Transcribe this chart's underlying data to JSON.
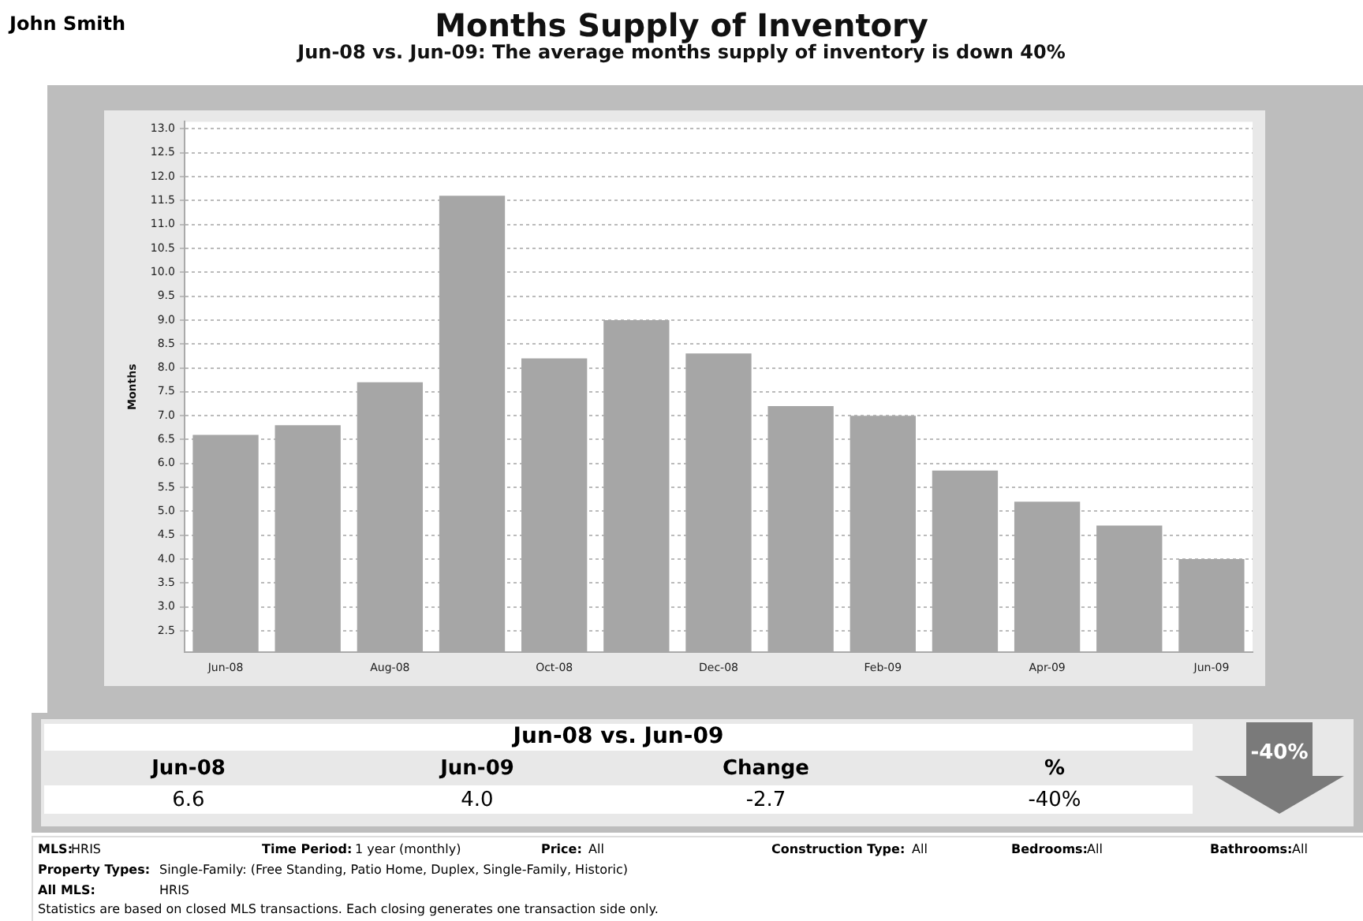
{
  "chart_data": {
    "type": "bar",
    "title": "Months Supply of Inventory",
    "subtitle": "Jun-08 vs. Jun-09:  The average months supply of inventory is down 40%",
    "ylabel": "Months",
    "categories": [
      "Jun-08",
      null,
      "Aug-08",
      null,
      "Oct-08",
      null,
      "Dec-08",
      null,
      "Feb-09",
      null,
      "Apr-09",
      null,
      "Jun-09"
    ],
    "values": [
      6.6,
      6.8,
      7.7,
      11.6,
      8.2,
      9.0,
      8.3,
      7.2,
      7.0,
      5.85,
      5.2,
      4.7,
      4.0
    ],
    "color": "#a6a6a6",
    "ylim": [
      2.05,
      13.15
    ],
    "yticks": [
      2.5,
      {
        "value": 3,
        "label": "3.0"
      },
      3.5,
      {
        "value": 4,
        "label": "4.0"
      },
      4.5,
      {
        "value": 5,
        "label": "5.0"
      },
      5.5,
      {
        "value": 6,
        "label": "6.0"
      },
      6.5,
      {
        "value": 7,
        "label": "7.0"
      },
      7.5,
      {
        "value": 8,
        "label": "8.0"
      },
      8.5,
      {
        "value": 9,
        "label": "9.0"
      },
      9.5,
      {
        "value": 10,
        "label": "10.0"
      },
      10.5,
      {
        "value": 11,
        "label": "11.0"
      },
      11.5,
      {
        "value": 12,
        "label": "12.0"
      },
      12.5,
      {
        "value": 13,
        "label": "13.0"
      }
    ],
    "grid": "y",
    "line_style": "dashed",
    "legend": false,
    "annotations": [
      "John Smith",
      "Jun-08 vs. Jun-09",
      "Jun-08",
      "Jun-09",
      "Change",
      "%",
      "6.6",
      "4.0",
      "-2.7",
      "-40%",
      "-40%",
      "MLS:",
      "HRIS",
      "Time Period:",
      "1 year (monthly)",
      "Price:",
      "All",
      "Construction Type:",
      "All",
      "Bedrooms:",
      "All",
      "Bathrooms:",
      "All",
      "Property Types:",
      "Single-Family: (Free Standing, Patio Home, Duplex, Single-Family, Historic)",
      "All MLS:",
      "HRIS",
      "Statistics are based on closed MLS transactions.  Each closing generates one transaction side only."
    ]
  }
}
